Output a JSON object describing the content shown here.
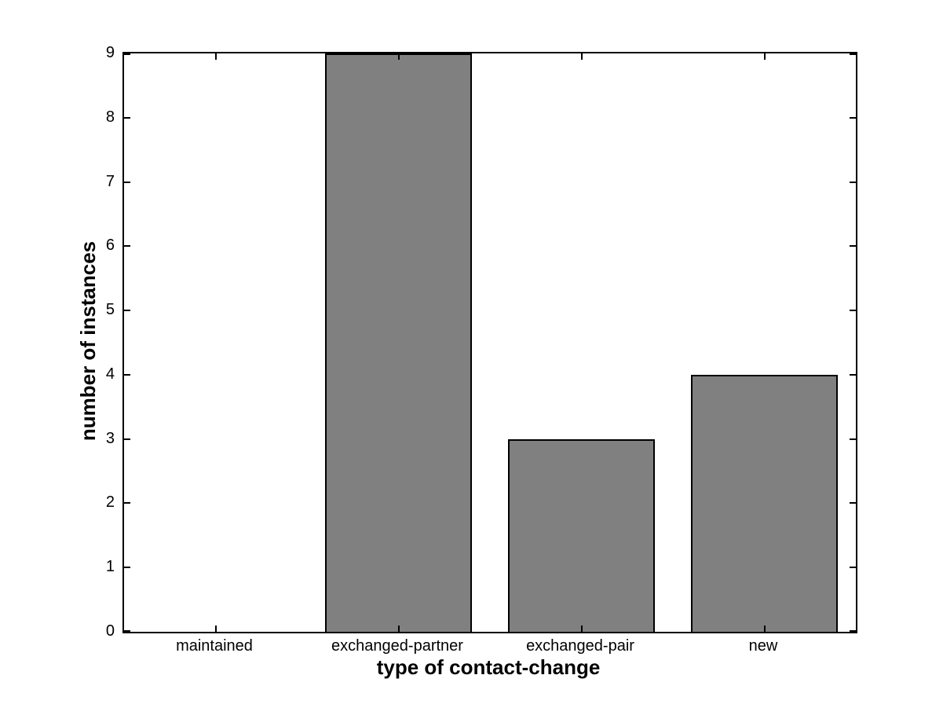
{
  "chart_data": {
    "type": "bar",
    "categories": [
      "maintained",
      "exchanged-partner",
      "exchanged-pair",
      "new"
    ],
    "values": [
      0,
      9,
      3,
      4
    ],
    "title": "",
    "xlabel": "type of contact-change",
    "ylabel": "number of instances",
    "ylim": [
      0,
      9
    ],
    "yticks": [
      0,
      1,
      2,
      3,
      4,
      5,
      6,
      7,
      8,
      9
    ],
    "bar_width_fraction": 0.8,
    "bar_color": "#808080",
    "bar_edge_color": "#000000",
    "axis_color": "#000000",
    "background_color": "#ffffff",
    "grid": false,
    "legend_position": "none",
    "tick_direction": "in"
  }
}
